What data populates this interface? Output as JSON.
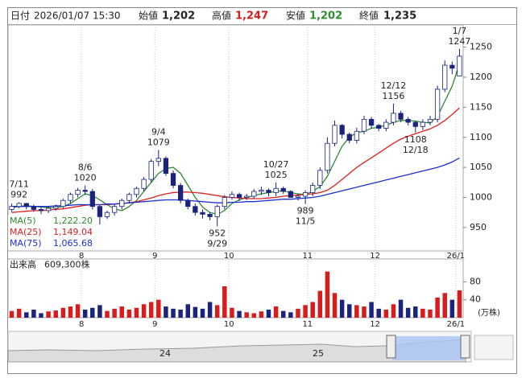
{
  "chart_data": {
    "type": "candlestick",
    "header": {
      "date_label": "日付",
      "date": "2026/01/07 15:30",
      "open_label": "始値",
      "open": "1,202",
      "high_label": "高値",
      "high": "1,247",
      "low_label": "安値",
      "low": "1,202",
      "close_label": "終値",
      "close": "1,235"
    },
    "open": [
      980,
      985,
      990,
      985,
      980,
      978,
      982,
      985,
      995,
      1005,
      1012,
      1010,
      985,
      968,
      975,
      985,
      995,
      1005,
      1015,
      1030,
      1060,
      1065,
      1040,
      1020,
      995,
      985,
      975,
      972,
      968,
      985,
      1000,
      1005,
      1000,
      1002,
      1010,
      1012,
      1008,
      1015,
      1010,
      1000,
      1002,
      1008,
      1020,
      1045,
      1090,
      1120,
      1105,
      1095,
      1110,
      1130,
      1120,
      1115,
      1125,
      1140,
      1130,
      1125,
      1118,
      1125,
      1130,
      1180,
      1220,
      1202
    ],
    "high": [
      990,
      992,
      991,
      988,
      984,
      985,
      988,
      998,
      1008,
      1016,
      1020,
      1014,
      988,
      978,
      988,
      998,
      1008,
      1018,
      1034,
      1064,
      1079,
      1068,
      1045,
      1024,
      998,
      990,
      980,
      976,
      988,
      1004,
      1010,
      1008,
      1006,
      1014,
      1018,
      1015,
      1025,
      1018,
      1012,
      1006,
      1012,
      1025,
      1050,
      1100,
      1128,
      1122,
      1108,
      1116,
      1136,
      1134,
      1122,
      1130,
      1156,
      1144,
      1134,
      1128,
      1130,
      1136,
      1186,
      1228,
      1226,
      1247
    ],
    "low": [
      976,
      982,
      980,
      976,
      972,
      974,
      978,
      982,
      990,
      1000,
      1004,
      980,
      955,
      964,
      970,
      980,
      990,
      1000,
      1010,
      1025,
      1052,
      1036,
      1015,
      990,
      980,
      970,
      965,
      962,
      952,
      980,
      996,
      994,
      996,
      998,
      1004,
      1002,
      1002,
      1006,
      1002,
      995,
      989,
      1002,
      1014,
      1040,
      1085,
      1098,
      1090,
      1090,
      1105,
      1115,
      1110,
      1110,
      1120,
      1125,
      1120,
      1108,
      1112,
      1120,
      1125,
      1175,
      1205,
      1202
    ],
    "close": [
      985,
      990,
      985,
      980,
      978,
      982,
      985,
      995,
      1005,
      1012,
      1010,
      985,
      968,
      975,
      985,
      995,
      1005,
      1015,
      1030,
      1060,
      1065,
      1040,
      1020,
      995,
      985,
      975,
      972,
      968,
      985,
      1000,
      1005,
      1000,
      1002,
      1010,
      1012,
      1008,
      1015,
      1010,
      1000,
      1002,
      1008,
      1020,
      1045,
      1090,
      1120,
      1105,
      1095,
      1110,
      1130,
      1120,
      1115,
      1125,
      1140,
      1130,
      1125,
      1118,
      1125,
      1130,
      1180,
      1220,
      1215,
      1235
    ],
    "up_color": "#ffffff",
    "down_color": "#1a237e",
    "candle_edge": "#1a237e",
    "series": [
      {
        "name": "MA(5)",
        "color": "#2e8b2e",
        "value_label": "1,222.20",
        "values": [
          983,
          985,
          986,
          985,
          984,
          983,
          983,
          985,
          990,
          998,
          1006,
          1003,
          996,
          988,
          981,
          978,
          985,
          995,
          1010,
          1025,
          1040,
          1048,
          1050,
          1040,
          1020,
          1000,
          984,
          975,
          972,
          978,
          990,
          996,
          1000,
          1003,
          1006,
          1008,
          1010,
          1011,
          1008,
          1006,
          1005,
          1010,
          1018,
          1035,
          1060,
          1085,
          1100,
          1108,
          1110,
          1115,
          1117,
          1120,
          1125,
          1128,
          1128,
          1127,
          1125,
          1124,
          1135,
          1160,
          1185,
          1222.2
        ]
      },
      {
        "name": "MA(25)",
        "color": "#e0201e",
        "value_label": "1,149.04",
        "values": [
          975,
          976,
          977,
          978,
          978,
          979,
          980,
          981,
          983,
          985,
          987,
          988,
          988,
          988,
          989,
          990,
          991,
          993,
          996,
          999,
          1003,
          1006,
          1008,
          1009,
          1009,
          1008,
          1007,
          1005,
          1003,
          1001,
          1000,
          999,
          998,
          998,
          998,
          999,
          1000,
          1002,
          1003,
          1004,
          1005,
          1006,
          1008,
          1012,
          1020,
          1030,
          1040,
          1050,
          1058,
          1066,
          1074,
          1082,
          1090,
          1097,
          1102,
          1106,
          1110,
          1114,
          1120,
          1128,
          1138,
          1149.04
        ]
      },
      {
        "name": "MA(75)",
        "color": "#1c2fd0",
        "value_label": "1,065.68",
        "values": [
          985,
          985,
          985,
          985,
          985,
          985,
          986,
          986,
          987,
          988,
          988,
          988,
          988,
          989,
          989,
          990,
          991,
          992,
          993,
          994,
          995,
          996,
          996,
          996,
          995,
          994,
          993,
          992,
          991,
          991,
          992,
          992,
          993,
          993,
          994,
          995,
          996,
          997,
          997,
          998,
          999,
          1000,
          1002,
          1005,
          1008,
          1011,
          1014,
          1017,
          1020,
          1023,
          1026,
          1029,
          1032,
          1035,
          1038,
          1041,
          1044,
          1047,
          1050,
          1054,
          1059,
          1065.68
        ]
      }
    ],
    "ylim": [
      911,
      1287
    ],
    "yticks": [
      950,
      1000,
      1050,
      1100,
      1150,
      1200,
      1250
    ],
    "xticks": [
      {
        "value": 9.5,
        "label": "8"
      },
      {
        "value": 19.5,
        "label": "9"
      },
      {
        "value": 29.6,
        "label": "10"
      },
      {
        "value": 40.3,
        "label": "11"
      },
      {
        "value": 49.5,
        "label": "12"
      },
      {
        "value": 60.5,
        "label": "26/1"
      }
    ],
    "annotations": [
      {
        "date": "7/11",
        "price": 992,
        "at": 1,
        "side": "high"
      },
      {
        "date": "8/6",
        "price": 1020,
        "at": 10,
        "side": "high"
      },
      {
        "date": "9/4",
        "price": 1079,
        "at": 20,
        "side": "high"
      },
      {
        "date": "9/29",
        "price": 952,
        "at": 28,
        "side": "low"
      },
      {
        "date": "10/27",
        "price": 1025,
        "at": 36,
        "side": "high"
      },
      {
        "date": "11/5",
        "price": 989,
        "at": 40,
        "side": "low"
      },
      {
        "date": "12/12",
        "price": 1156,
        "at": 52,
        "side": "high"
      },
      {
        "date": "12/18",
        "price": 1108,
        "at": 55,
        "side": "low"
      },
      {
        "date": "1/7",
        "price": 1247,
        "at": 61,
        "side": "high"
      }
    ],
    "volume": {
      "label": "出来高",
      "value_label": "609,300株",
      "unit": "(万株)",
      "up_color": "#d81b1b",
      "down_color": "#1a237e",
      "values": [
        15,
        20,
        12,
        18,
        10,
        14,
        16,
        22,
        25,
        30,
        18,
        22,
        28,
        15,
        20,
        25,
        18,
        22,
        30,
        35,
        40,
        25,
        20,
        18,
        30,
        24,
        20,
        35,
        28,
        70,
        22,
        15,
        12,
        10,
        14,
        18,
        25,
        15,
        12,
        20,
        28,
        35,
        60,
        103,
        55,
        40,
        30,
        28,
        25,
        35,
        20,
        18,
        30,
        40,
        22,
        25,
        20,
        18,
        45,
        55,
        40,
        60.93
      ],
      "ylim": [
        0,
        131
      ],
      "yticks": [
        40,
        80
      ]
    },
    "navigator": {
      "labels": [
        "24",
        "25"
      ]
    }
  }
}
